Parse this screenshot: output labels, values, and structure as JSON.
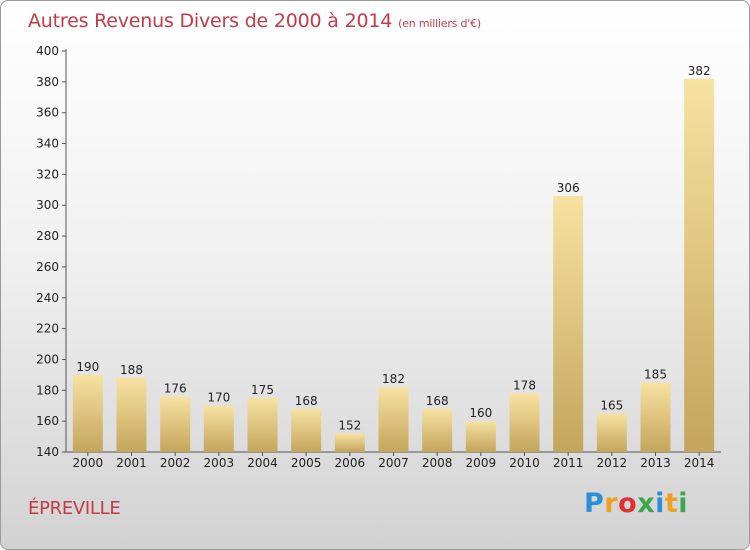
{
  "title": "Autres Revenus Divers de 2000 à 2014",
  "title_unit": "(en milliers d'€)",
  "commune": "ÉPREVILLE",
  "logo": {
    "text": "Proxiti",
    "letters": [
      {
        "char": "P",
        "color": "#2b8fd8"
      },
      {
        "char": "r",
        "color": "#f0a020"
      },
      {
        "char": "o",
        "color": "#e03030"
      },
      {
        "char": "x",
        "color": "#3aa850"
      },
      {
        "char": "i",
        "color": "#2b8fd8"
      },
      {
        "char": "t",
        "color": "#f0a020"
      },
      {
        "char": "i",
        "color": "#3aa850"
      }
    ]
  },
  "colors": {
    "title": "#c33a48",
    "bar_light": "#f7e2a2",
    "bar_dark": "#c4a55b",
    "axis": "#555555"
  },
  "chart_data": {
    "type": "bar",
    "title": "Autres Revenus Divers de 2000 à 2014",
    "subtitle": "(en milliers d'€)",
    "xlabel": "",
    "ylabel": "",
    "categories": [
      "2000",
      "2001",
      "2002",
      "2003",
      "2004",
      "2005",
      "2006",
      "2007",
      "2008",
      "2009",
      "2010",
      "2011",
      "2012",
      "2013",
      "2014"
    ],
    "values": [
      190,
      188,
      176,
      170,
      175,
      168,
      152,
      182,
      168,
      160,
      178,
      306,
      165,
      185,
      382
    ],
    "ylim": [
      140,
      400
    ],
    "yticks": [
      140,
      160,
      180,
      200,
      220,
      240,
      260,
      280,
      300,
      320,
      340,
      360,
      380,
      400
    ],
    "data_labels": true,
    "grid": false,
    "legend": "none"
  }
}
